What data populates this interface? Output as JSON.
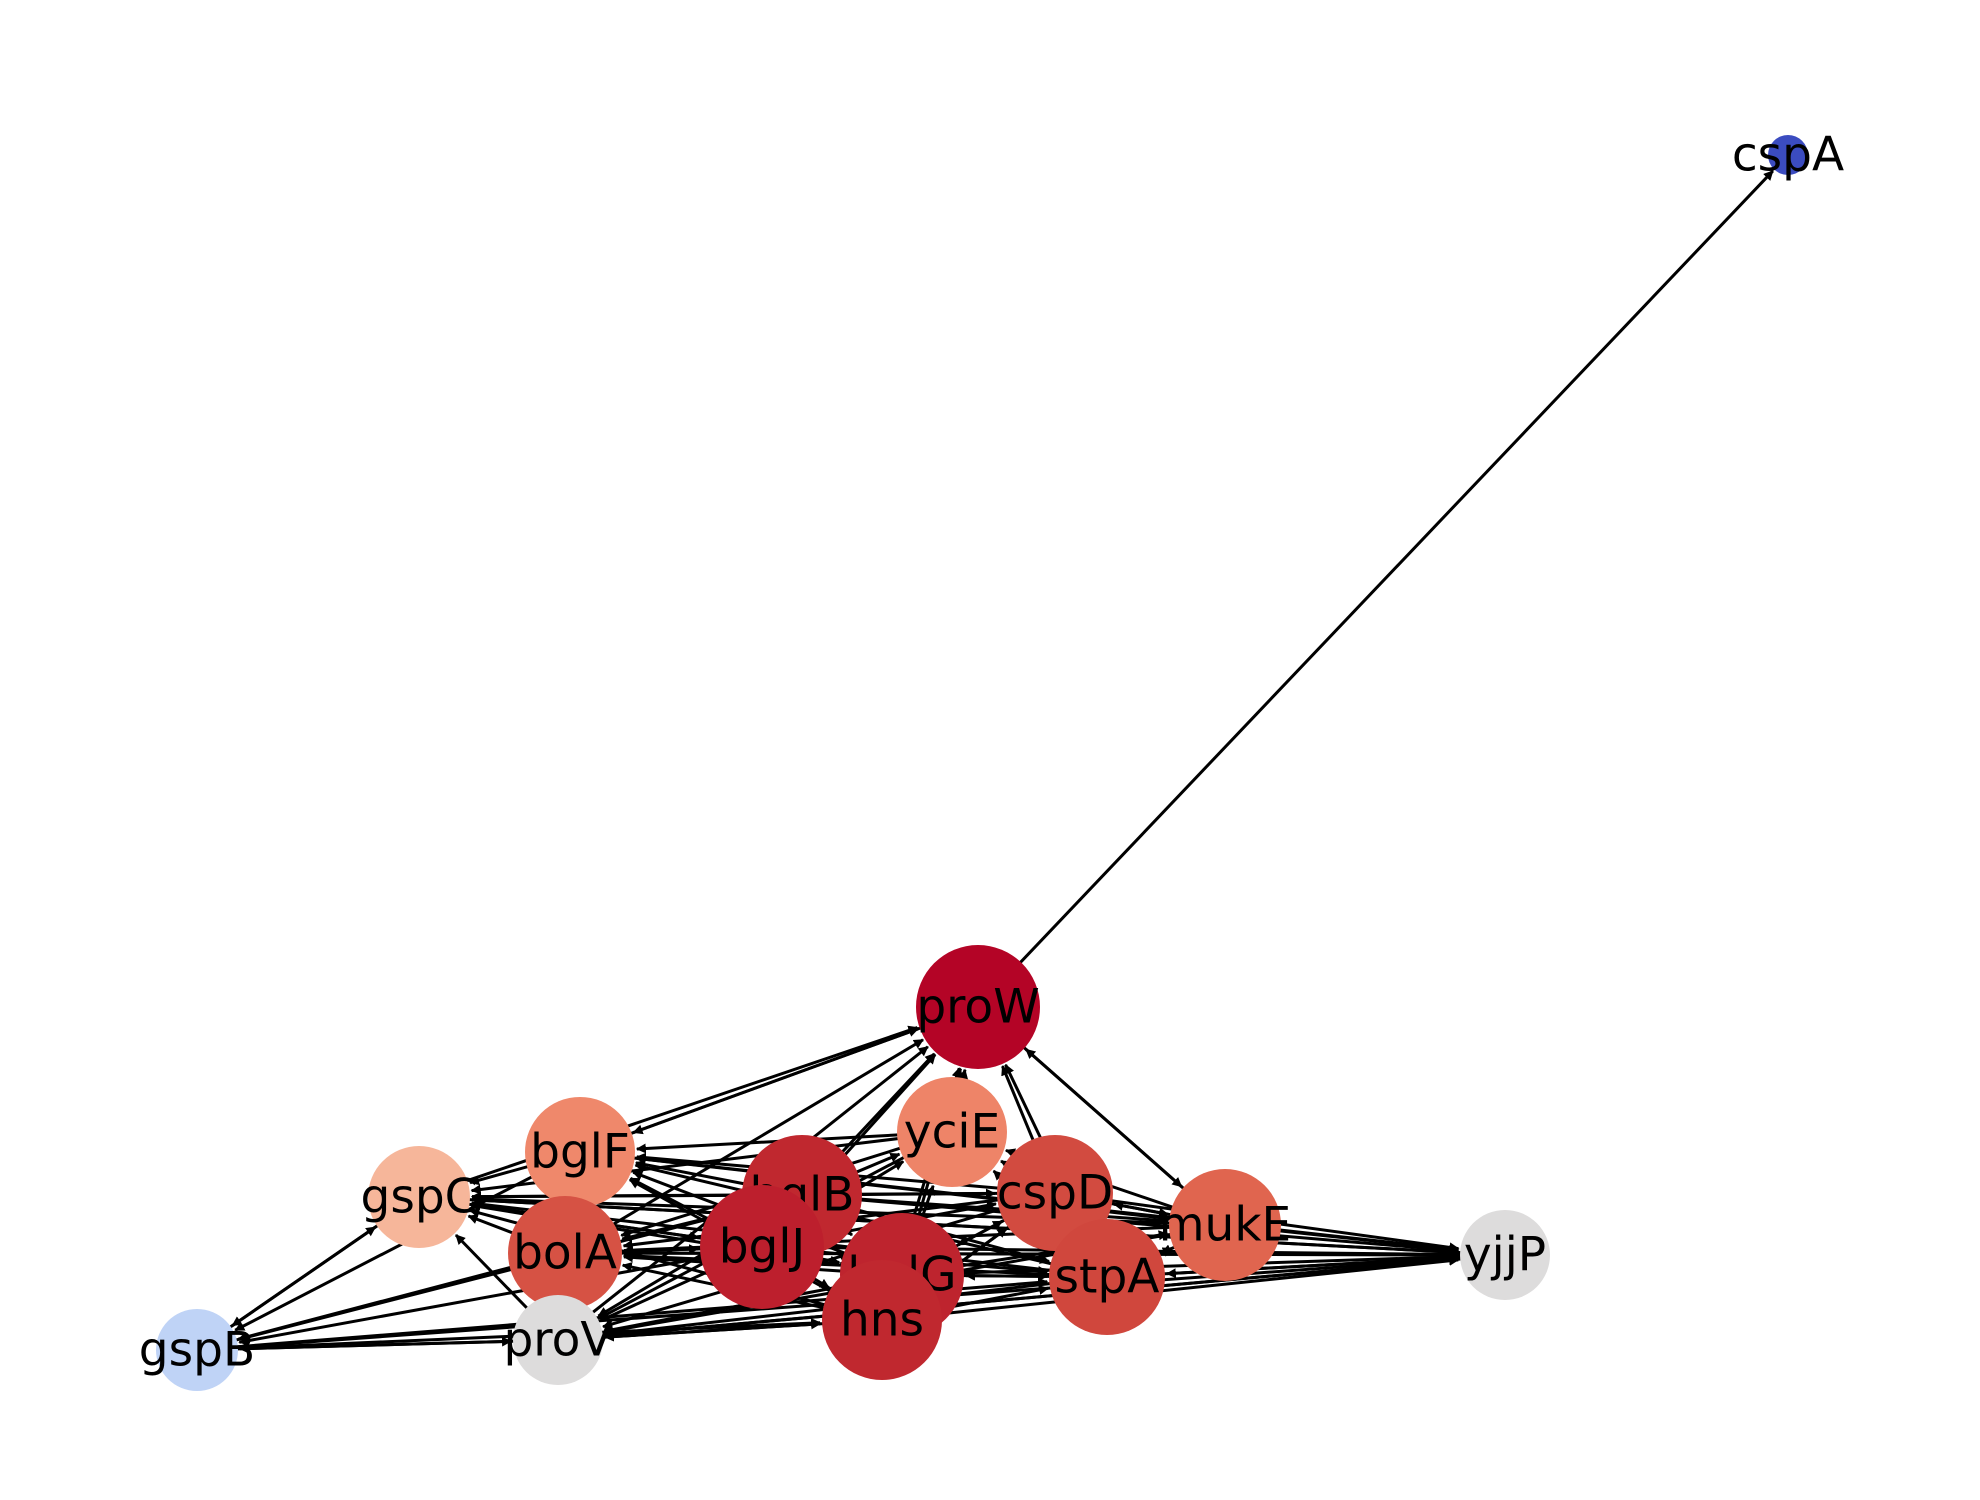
{
  "graph": {
    "type": "directed-network",
    "nodes": [
      {
        "id": "cspA",
        "label": "cspA",
        "color": "#3b4cc0"
      },
      {
        "id": "proW",
        "label": "proW",
        "color": "#b40426"
      },
      {
        "id": "yciE",
        "label": "yciE",
        "color": "#ee8468"
      },
      {
        "id": "bglF",
        "label": "bglF",
        "color": "#ef886b"
      },
      {
        "id": "gspC",
        "label": "gspC",
        "color": "#f6b69a"
      },
      {
        "id": "bglB",
        "label": "bglB",
        "color": "#c0282f"
      },
      {
        "id": "cspD",
        "label": "cspD",
        "color": "#d24b40"
      },
      {
        "id": "mukE",
        "label": "mukE",
        "color": "#e0654f"
      },
      {
        "id": "yjjP",
        "label": "yjjP",
        "color": "#dddcdc"
      },
      {
        "id": "bolA",
        "label": "bolA",
        "color": "#d65244"
      },
      {
        "id": "bglJ",
        "label": "bglJ",
        "color": "#bd1f2d"
      },
      {
        "id": "bglG",
        "label": "bglG",
        "color": "#be242e"
      },
      {
        "id": "stpA",
        "label": "stpA",
        "color": "#d0473d"
      },
      {
        "id": "hns",
        "label": "hns",
        "color": "#c0282f"
      },
      {
        "id": "proV",
        "label": "proV",
        "color": "#dddcdc"
      },
      {
        "id": "gspB",
        "label": "gspB",
        "color": "#bfd3f6"
      }
    ],
    "edges": [
      [
        "proW",
        "cspA"
      ],
      [
        "bglF",
        "proW"
      ],
      [
        "proW",
        "bglF"
      ],
      [
        "gspC",
        "proW"
      ],
      [
        "bolA",
        "proW"
      ],
      [
        "bglB",
        "proW"
      ],
      [
        "bglJ",
        "proW"
      ],
      [
        "bglG",
        "proW"
      ],
      [
        "hns",
        "proW"
      ],
      [
        "proV",
        "proW"
      ],
      [
        "cspD",
        "proW"
      ],
      [
        "stpA",
        "proW"
      ],
      [
        "mukE",
        "proW"
      ],
      [
        "proW",
        "mukE"
      ],
      [
        "yciE",
        "proW"
      ],
      [
        "bglF",
        "gspC"
      ],
      [
        "bglB",
        "gspC"
      ],
      [
        "bglJ",
        "gspC"
      ],
      [
        "bglG",
        "gspC"
      ],
      [
        "hns",
        "gspC"
      ],
      [
        "cspD",
        "gspC"
      ],
      [
        "stpA",
        "gspC"
      ],
      [
        "mukE",
        "gspC"
      ],
      [
        "yjjP",
        "gspC"
      ],
      [
        "proV",
        "gspC"
      ],
      [
        "bolA",
        "gspC"
      ],
      [
        "yciE",
        "gspC"
      ],
      [
        "bglB",
        "bglF"
      ],
      [
        "bglJ",
        "bglF"
      ],
      [
        "bglG",
        "bglF"
      ],
      [
        "hns",
        "bglF"
      ],
      [
        "cspD",
        "bglF"
      ],
      [
        "stpA",
        "bglF"
      ],
      [
        "mukE",
        "bglF"
      ],
      [
        "yciE",
        "bglF"
      ],
      [
        "bolA",
        "bglF"
      ],
      [
        "gspC",
        "gspB"
      ],
      [
        "bglF",
        "gspB"
      ],
      [
        "bolA",
        "gspB"
      ],
      [
        "bglJ",
        "gspB"
      ],
      [
        "proV",
        "gspB"
      ],
      [
        "gspB",
        "proV"
      ],
      [
        "gspB",
        "gspC"
      ],
      [
        "gspB",
        "hns"
      ],
      [
        "gspB",
        "stpA"
      ],
      [
        "gspB",
        "bglB"
      ],
      [
        "bglB",
        "proV"
      ],
      [
        "bglJ",
        "proV"
      ],
      [
        "bglG",
        "proV"
      ],
      [
        "hns",
        "proV"
      ],
      [
        "cspD",
        "proV"
      ],
      [
        "stpA",
        "proV"
      ],
      [
        "mukE",
        "proV"
      ],
      [
        "yjjP",
        "proV"
      ],
      [
        "yciE",
        "proV"
      ],
      [
        "bolA",
        "proV"
      ],
      [
        "bglB",
        "bolA"
      ],
      [
        "bglJ",
        "bolA"
      ],
      [
        "bglG",
        "bolA"
      ],
      [
        "hns",
        "bolA"
      ],
      [
        "cspD",
        "bolA"
      ],
      [
        "stpA",
        "bolA"
      ],
      [
        "mukE",
        "bolA"
      ],
      [
        "yjjP",
        "bolA"
      ],
      [
        "yciE",
        "bolA"
      ],
      [
        "bglB",
        "yciE"
      ],
      [
        "bglJ",
        "yciE"
      ],
      [
        "bglG",
        "yciE"
      ],
      [
        "cspD",
        "yciE"
      ],
      [
        "stpA",
        "yciE"
      ],
      [
        "mukE",
        "yciE"
      ],
      [
        "bglB",
        "cspD"
      ],
      [
        "bglJ",
        "cspD"
      ],
      [
        "bglG",
        "cspD"
      ],
      [
        "hns",
        "cspD"
      ],
      [
        "stpA",
        "cspD"
      ],
      [
        "mukE",
        "cspD"
      ],
      [
        "cspD",
        "mukE"
      ],
      [
        "bglB",
        "mukE"
      ],
      [
        "bglG",
        "mukE"
      ],
      [
        "stpA",
        "mukE"
      ],
      [
        "gspC",
        "yjjP"
      ],
      [
        "bglF",
        "yjjP"
      ],
      [
        "bolA",
        "yjjP"
      ],
      [
        "bglB",
        "yjjP"
      ],
      [
        "bglJ",
        "yjjP"
      ],
      [
        "bglG",
        "yjjP"
      ],
      [
        "hns",
        "yjjP"
      ],
      [
        "cspD",
        "yjjP"
      ],
      [
        "stpA",
        "yjjP"
      ],
      [
        "mukE",
        "yjjP"
      ],
      [
        "proV",
        "yjjP"
      ],
      [
        "gspB",
        "yjjP"
      ],
      [
        "bglG",
        "stpA"
      ],
      [
        "stpA",
        "bglG"
      ],
      [
        "hns",
        "stpA"
      ],
      [
        "bglJ",
        "stpA"
      ],
      [
        "bglB",
        "stpA"
      ],
      [
        "mukE",
        "stpA"
      ],
      [
        "yjjP",
        "stpA"
      ],
      [
        "bglJ",
        "bglG"
      ],
      [
        "bglB",
        "bglG"
      ],
      [
        "hns",
        "bglG"
      ],
      [
        "cspD",
        "bglG"
      ],
      [
        "bglG",
        "hns"
      ],
      [
        "bglJ",
        "hns"
      ],
      [
        "bglB",
        "hns"
      ],
      [
        "cspD",
        "hns"
      ],
      [
        "proV",
        "hns"
      ],
      [
        "bglJ",
        "bglB"
      ],
      [
        "bglB",
        "bglJ"
      ],
      [
        "bolA",
        "bglJ"
      ],
      [
        "gspC",
        "bglJ"
      ]
    ]
  }
}
